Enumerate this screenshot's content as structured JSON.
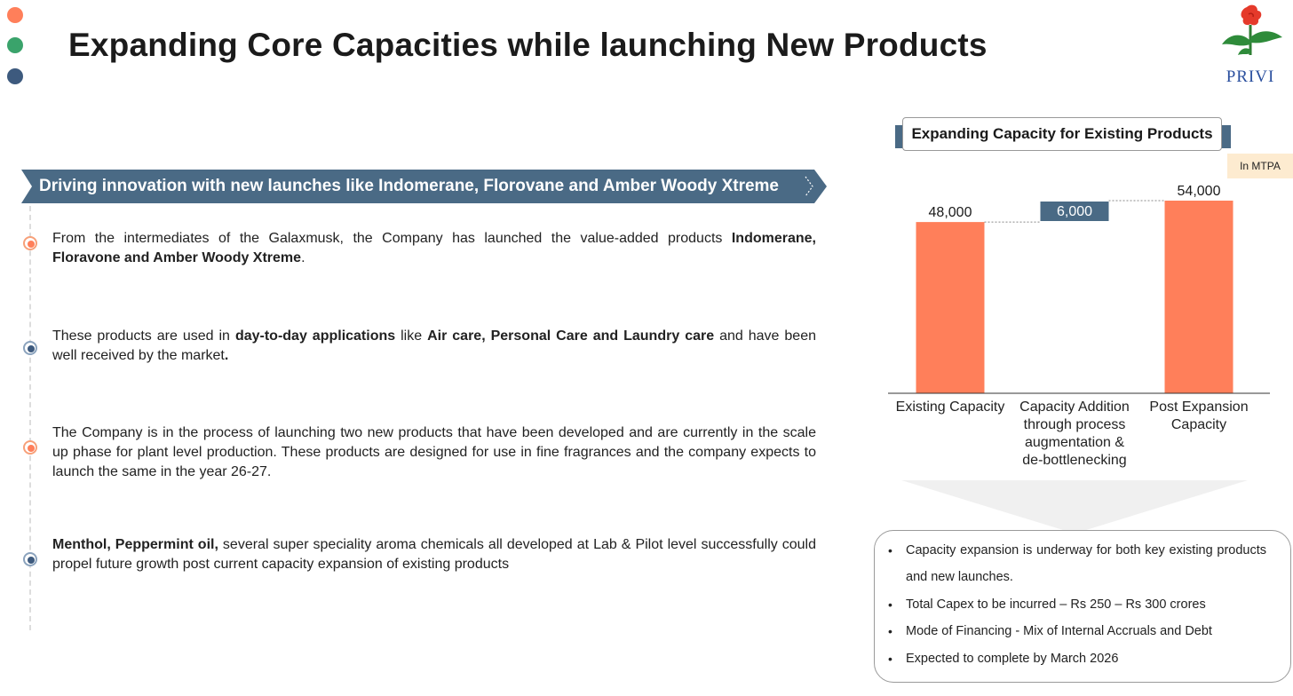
{
  "slide": {
    "title": "Expanding Core Capacities while launching New Products",
    "logo_text": "PRIVI",
    "banner": "Driving innovation with new launches like Indomerane, Florovane and Amber Woody Xtreme",
    "colors": {
      "accent_orange": "#ff7f5a",
      "accent_green": "#3aa36b",
      "accent_blue": "#3d5a7e",
      "banner_bg": "#4a6a85",
      "bar_orange": "#ff7f5a",
      "bar_blue": "#4a6a85"
    },
    "points": [
      {
        "parts": [
          "From the intermediates of the Galaxmusk, the Company has launched the value-added products ",
          "Indomerane, Floravone and Amber Woody Xtreme",
          "."
        ]
      },
      {
        "parts": [
          "These products are used in ",
          "day-to-day applications",
          " like ",
          "Air care, Personal Care and Laundry care",
          " and have been well received by the market",
          "."
        ]
      },
      {
        "parts": [
          "The Company is in the process of launching two new products that have been developed and are currently in the scale up phase for plant level production. These products are designed for use in fine fragrances and the company expects to launch the same in the year 26-27."
        ]
      },
      {
        "parts": [
          "Menthol, Peppermint oil,",
          " several super speciality aroma chemicals all developed at Lab & Pilot level successfully could propel future growth post current capacity expansion of existing products"
        ]
      }
    ],
    "info_box": [
      "Capacity expansion is underway for both key existing products and new launches.",
      "Total Capex to be incurred – Rs 250 – Rs 300 crores",
      "Mode of Financing  - Mix of Internal Accruals and Debt",
      "Expected to complete by March 2026"
    ]
  },
  "chart_data": {
    "type": "bar",
    "title": "Expanding Capacity for Existing Products",
    "unit_label": "In MTPA",
    "categories": [
      "Existing Capacity",
      "Capacity Addition through process augmentation & de-bottlenecking",
      "Post Expansion Capacity"
    ],
    "category_lines": [
      [
        "Existing Capacity"
      ],
      [
        "Capacity Addition",
        "through process",
        "augmentation &",
        "de-bottlenecking"
      ],
      [
        "Post Expansion",
        "Capacity"
      ]
    ],
    "values": [
      48000,
      6000,
      54000
    ],
    "value_labels": [
      "48,000",
      "6,000",
      "54,000"
    ],
    "waterfall": true,
    "bar_colors": [
      "#ff7f5a",
      "#4a6a85",
      "#ff7f5a"
    ],
    "ylim": [
      0,
      54000
    ],
    "grid": false
  }
}
